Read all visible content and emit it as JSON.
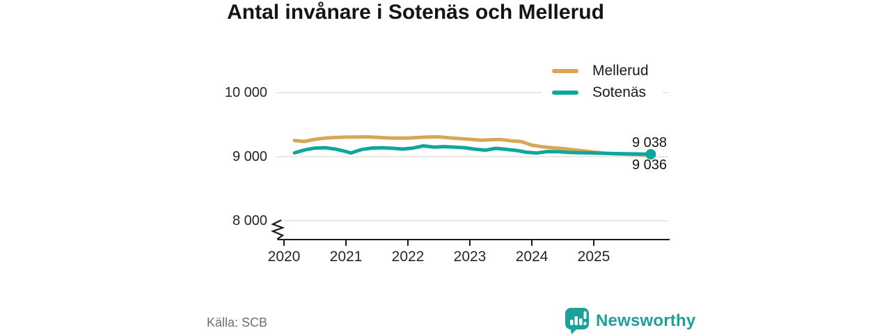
{
  "source": {
    "text": "Källa: SCB"
  },
  "branding": {
    "name": "Newsworthy",
    "color": "#1DA099",
    "icon": "bar-chart-speech-bubble-icon"
  },
  "colors": {
    "grid": "#DADADA",
    "axis": "#1A1A1A",
    "title_text": "#141414",
    "tick_text": "#262626",
    "muted_text": "#6E6E6E",
    "mellerud": "#D8A656",
    "sotenas": "#0DA79B",
    "background": "#FFFFFF"
  },
  "chart_data": {
    "type": "line",
    "title": "Antal invånare i Sotenäs och Mellerud",
    "xlabel": "",
    "ylabel": "",
    "grid": "horizontal",
    "legend_position": "top-right",
    "y_axis_break": true,
    "ylim": [
      8000,
      10000
    ],
    "x_range": [
      2020,
      2026.2
    ],
    "x_ticks": [
      2020,
      2021,
      2022,
      2023,
      2024,
      2025
    ],
    "y_ticks": [
      {
        "value": 10000,
        "label": "10 000"
      },
      {
        "value": 9000,
        "label": "9 000"
      },
      {
        "value": 8000,
        "label": "8 000"
      }
    ],
    "end_labels": [
      {
        "text": "9 038",
        "series": "Sotenäs"
      },
      {
        "text": "9 036",
        "series": "Mellerud"
      }
    ],
    "series": [
      {
        "name": "Mellerud",
        "color": "#D8A656",
        "end_dot": false,
        "points": [
          [
            2020.17,
            9252
          ],
          [
            2020.33,
            9238
          ],
          [
            2020.5,
            9272
          ],
          [
            2020.67,
            9290
          ],
          [
            2020.83,
            9300
          ],
          [
            2021.0,
            9305
          ],
          [
            2021.17,
            9308
          ],
          [
            2021.33,
            9310
          ],
          [
            2021.5,
            9302
          ],
          [
            2021.67,
            9294
          ],
          [
            2021.83,
            9290
          ],
          [
            2022.0,
            9291
          ],
          [
            2022.17,
            9300
          ],
          [
            2022.33,
            9308
          ],
          [
            2022.5,
            9310
          ],
          [
            2022.67,
            9295
          ],
          [
            2022.83,
            9283
          ],
          [
            2023.0,
            9272
          ],
          [
            2023.17,
            9258
          ],
          [
            2023.33,
            9264
          ],
          [
            2023.5,
            9268
          ],
          [
            2023.67,
            9248
          ],
          [
            2023.83,
            9236
          ],
          [
            2024.0,
            9180
          ],
          [
            2024.17,
            9155
          ],
          [
            2024.33,
            9140
          ],
          [
            2024.5,
            9128
          ],
          [
            2024.67,
            9108
          ],
          [
            2024.83,
            9092
          ],
          [
            2025.0,
            9072
          ],
          [
            2025.17,
            9055
          ],
          [
            2025.33,
            9045
          ],
          [
            2025.5,
            9040
          ],
          [
            2025.67,
            9034
          ],
          [
            2025.83,
            9030
          ],
          [
            2025.92,
            9036
          ]
        ]
      },
      {
        "name": "Sotenäs",
        "color": "#0DA79B",
        "end_dot": true,
        "points": [
          [
            2020.17,
            9060
          ],
          [
            2020.33,
            9105
          ],
          [
            2020.5,
            9135
          ],
          [
            2020.67,
            9140
          ],
          [
            2020.83,
            9118
          ],
          [
            2021.0,
            9080
          ],
          [
            2021.08,
            9058
          ],
          [
            2021.25,
            9112
          ],
          [
            2021.42,
            9135
          ],
          [
            2021.58,
            9140
          ],
          [
            2021.75,
            9132
          ],
          [
            2021.92,
            9120
          ],
          [
            2022.08,
            9135
          ],
          [
            2022.25,
            9168
          ],
          [
            2022.42,
            9150
          ],
          [
            2022.58,
            9158
          ],
          [
            2022.75,
            9150
          ],
          [
            2022.92,
            9140
          ],
          [
            2023.08,
            9118
          ],
          [
            2023.25,
            9102
          ],
          [
            2023.42,
            9130
          ],
          [
            2023.58,
            9115
          ],
          [
            2023.75,
            9098
          ],
          [
            2023.92,
            9070
          ],
          [
            2024.08,
            9058
          ],
          [
            2024.25,
            9080
          ],
          [
            2024.42,
            9078
          ],
          [
            2024.58,
            9068
          ],
          [
            2024.75,
            9062
          ],
          [
            2024.92,
            9060
          ],
          [
            2025.08,
            9055
          ],
          [
            2025.25,
            9050
          ],
          [
            2025.42,
            9048
          ],
          [
            2025.58,
            9045
          ],
          [
            2025.75,
            9042
          ],
          [
            2025.92,
            9038
          ]
        ]
      }
    ]
  }
}
